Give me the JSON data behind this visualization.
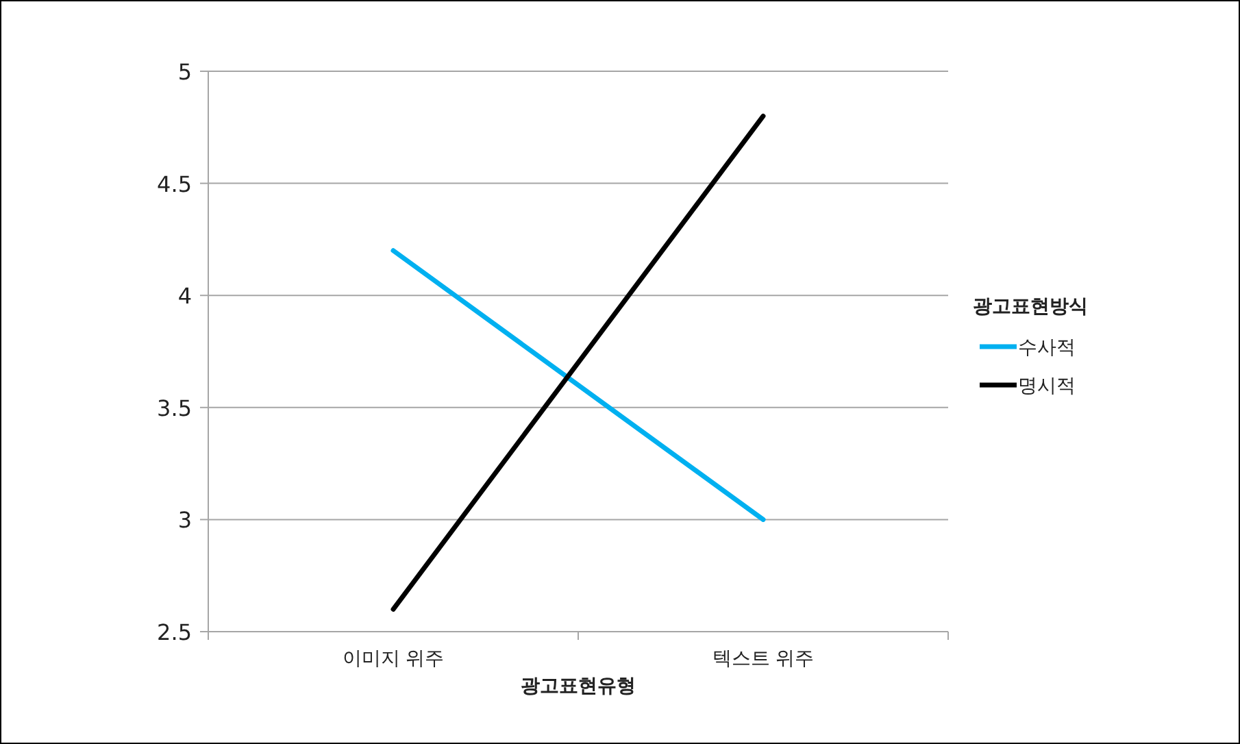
{
  "chart_data": {
    "type": "line",
    "xlabel": "광고표현유형",
    "legend_title": "광고표현방식",
    "categories": [
      "이미지 위주",
      "텍스트 위주"
    ],
    "series": [
      {
        "name": "수사적",
        "color": "#00b0f0",
        "values": [
          4.2,
          3.0
        ]
      },
      {
        "name": "명시적",
        "color": "#000000",
        "values": [
          2.6,
          4.8
        ]
      }
    ],
    "ylim": [
      2.5,
      5
    ],
    "yticks": [
      2.5,
      3,
      3.5,
      4,
      4.5,
      5
    ],
    "grid": "y",
    "legend": "right",
    "marker": "none",
    "line_style": "solid"
  }
}
